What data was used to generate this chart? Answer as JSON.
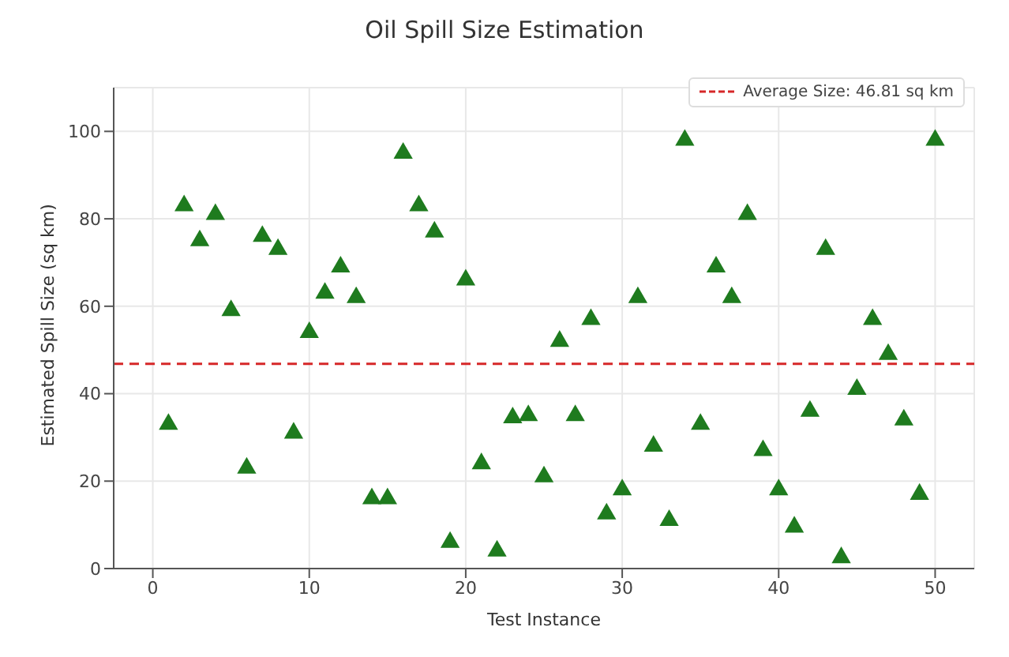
{
  "chart_data": {
    "type": "scatter",
    "title": "Oil Spill Size Estimation",
    "xlabel": "Test Instance",
    "ylabel": "Estimated Spill Size (sq km)",
    "x": [
      1,
      2,
      3,
      4,
      5,
      6,
      7,
      8,
      9,
      10,
      11,
      12,
      13,
      14,
      15,
      16,
      17,
      18,
      19,
      20,
      21,
      22,
      23,
      24,
      25,
      26,
      27,
      28,
      29,
      30,
      31,
      32,
      33,
      34,
      35,
      36,
      37,
      38,
      39,
      40,
      41,
      42,
      43,
      44,
      45,
      46,
      47,
      48,
      49,
      50
    ],
    "series": [
      {
        "color": "#1e7b1e",
        "values": [
          33,
          83,
          75,
          81,
          59,
          23,
          76,
          73,
          31,
          54,
          63,
          69,
          62,
          16,
          16,
          95,
          83,
          77,
          6,
          66,
          24,
          4,
          34.5,
          35,
          21,
          52,
          35,
          57,
          12.5,
          18,
          62,
          28,
          11,
          98,
          33,
          69,
          62,
          81,
          27,
          18,
          9.5,
          36,
          73,
          2.5,
          41,
          57,
          49,
          34,
          17,
          98
        ]
      }
    ],
    "xlim": [
      -2.5,
      52.5
    ],
    "xticks": [
      0,
      10,
      20,
      30,
      40,
      50
    ],
    "ylim": [
      0,
      110
    ],
    "yticks": [
      0,
      20,
      40,
      60,
      80,
      100
    ],
    "ref_lines": [
      {
        "axis": "y",
        "value": 46.81,
        "label": "Average Size: 46.81 sq km",
        "color": "#d62728",
        "line_style": "dashed"
      }
    ],
    "grid": true,
    "legend": "top right",
    "marker": "triangle"
  }
}
